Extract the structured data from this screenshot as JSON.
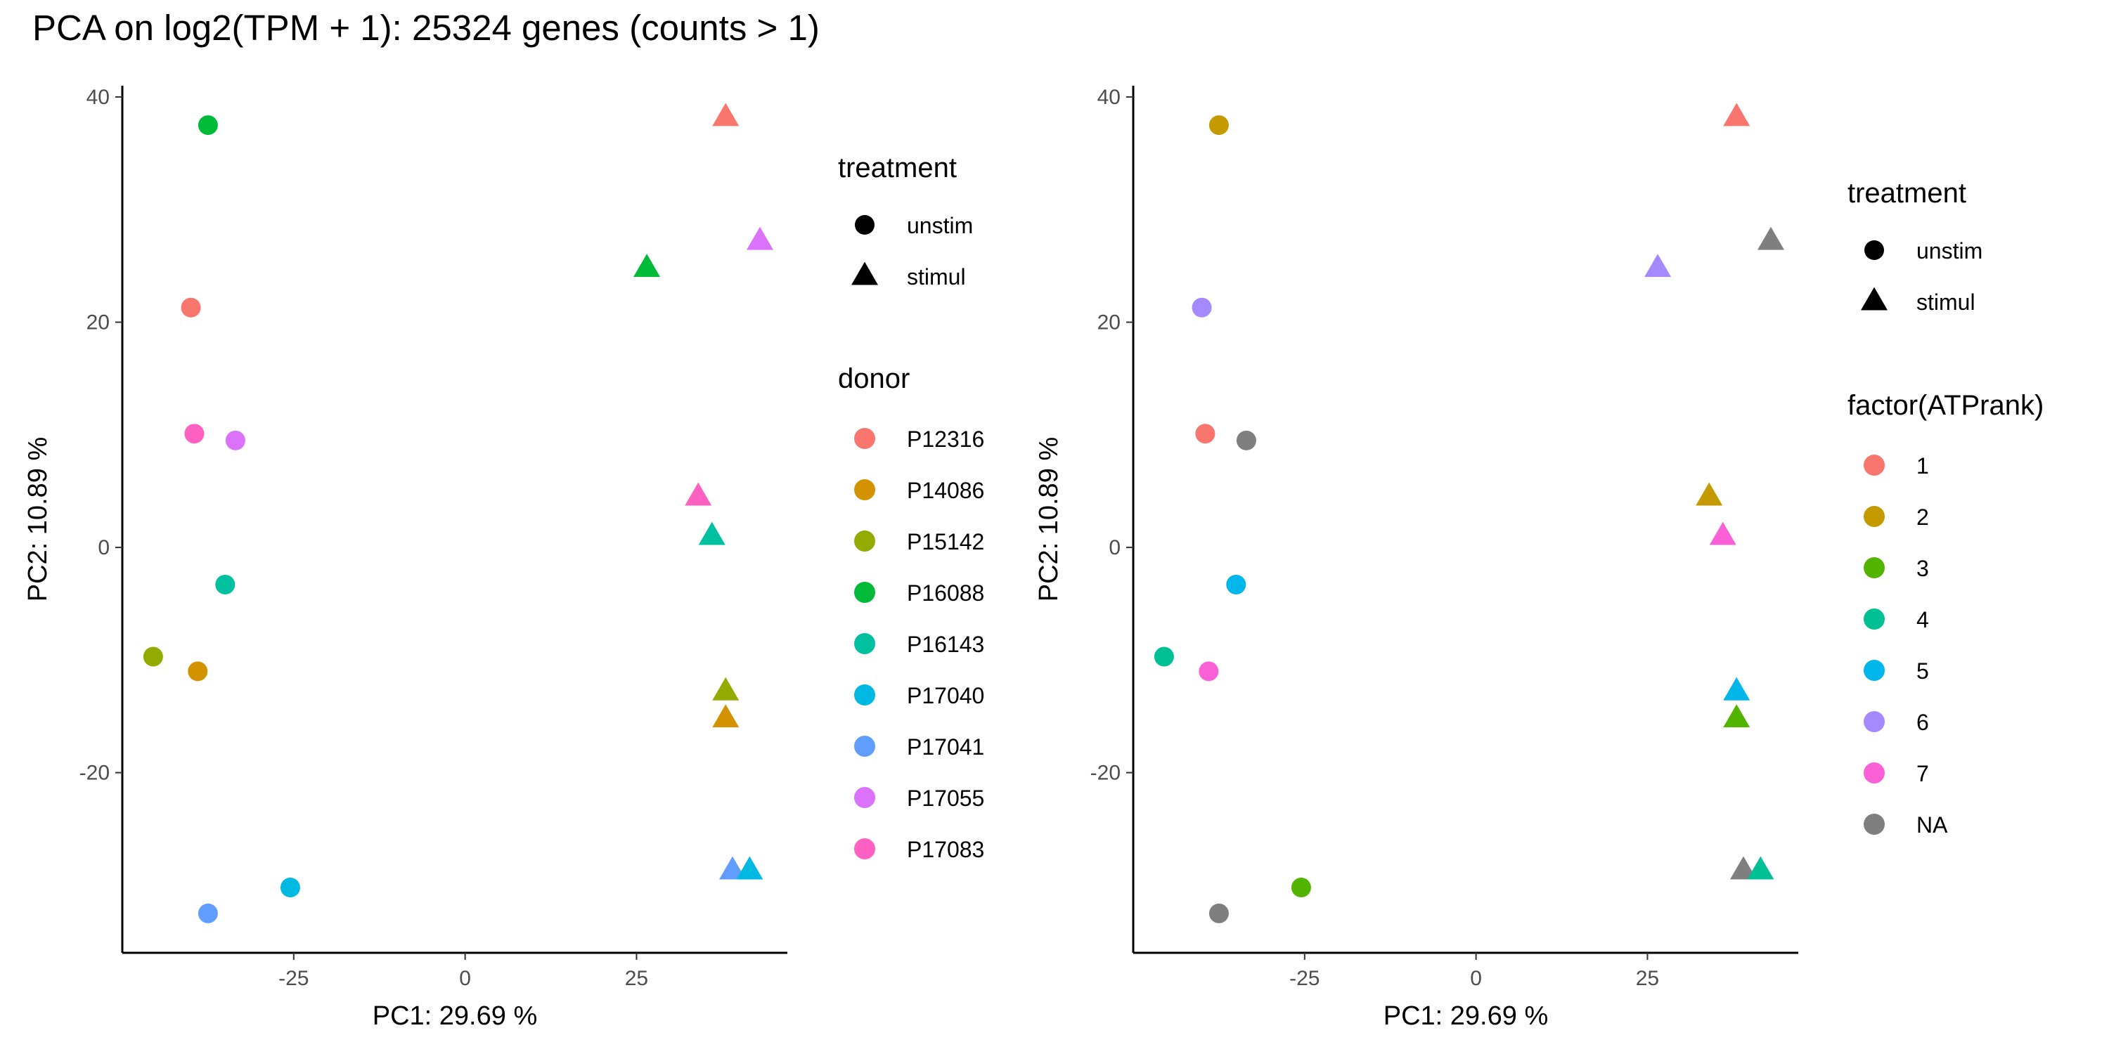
{
  "title": "PCA on log2(TPM + 1): 25324 genes (counts > 1)",
  "chart_data": [
    {
      "type": "scatter",
      "xlabel": "PC1:  29.69 %",
      "ylabel": "PC2:  10.89 %",
      "xlim": [
        -50,
        47
      ],
      "ylim": [
        -36,
        41
      ],
      "xticks": [
        -25,
        0,
        25
      ],
      "xtick_labels": [
        "-25",
        "0",
        "25"
      ],
      "yticks": [
        -20,
        0,
        20,
        40
      ],
      "ytick_labels": [
        "-20",
        "0",
        "20",
        "40"
      ],
      "grid": false,
      "legend_placement": "right",
      "shape_legend": {
        "title": "treatment",
        "items": [
          {
            "label": "unstim",
            "shape": "circle"
          },
          {
            "label": "stimul",
            "shape": "triangle"
          }
        ]
      },
      "color_legend": {
        "title": "donor",
        "items": [
          {
            "label": "P12316",
            "color": "#F8766D"
          },
          {
            "label": "P14086",
            "color": "#D39200"
          },
          {
            "label": "P15142",
            "color": "#93AA00"
          },
          {
            "label": "P16088",
            "color": "#00BA38"
          },
          {
            "label": "P16143",
            "color": "#00C19F"
          },
          {
            "label": "P17040",
            "color": "#00B9E3"
          },
          {
            "label": "P17041",
            "color": "#619CFF"
          },
          {
            "label": "P17055",
            "color": "#DB72FB"
          },
          {
            "label": "P17083",
            "color": "#FF61C3"
          }
        ]
      },
      "points": [
        {
          "x": -37.5,
          "y": 37.5,
          "shape": "circle",
          "color": "#00BA38"
        },
        {
          "x": -40,
          "y": 21.3,
          "shape": "circle",
          "color": "#F8766D"
        },
        {
          "x": -39.5,
          "y": 10.1,
          "shape": "circle",
          "color": "#FF61C3"
        },
        {
          "x": -33.5,
          "y": 9.5,
          "shape": "circle",
          "color": "#DB72FB"
        },
        {
          "x": -35,
          "y": -3.3,
          "shape": "circle",
          "color": "#00C19F"
        },
        {
          "x": -45.5,
          "y": -9.7,
          "shape": "circle",
          "color": "#93AA00"
        },
        {
          "x": -39,
          "y": -11,
          "shape": "circle",
          "color": "#D39200"
        },
        {
          "x": -25.5,
          "y": -30.2,
          "shape": "circle",
          "color": "#00B9E3"
        },
        {
          "x": -37.5,
          "y": -32.5,
          "shape": "circle",
          "color": "#619CFF"
        },
        {
          "x": 38,
          "y": 38.2,
          "shape": "triangle",
          "color": "#F8766D"
        },
        {
          "x": 43,
          "y": 27.2,
          "shape": "triangle",
          "color": "#DB72FB"
        },
        {
          "x": 26.5,
          "y": 24.8,
          "shape": "triangle",
          "color": "#00BA38"
        },
        {
          "x": 34,
          "y": 4.5,
          "shape": "triangle",
          "color": "#FF61C3"
        },
        {
          "x": 36,
          "y": 1,
          "shape": "triangle",
          "color": "#00C19F"
        },
        {
          "x": 38,
          "y": -12.8,
          "shape": "triangle",
          "color": "#93AA00"
        },
        {
          "x": 38,
          "y": -15.2,
          "shape": "triangle",
          "color": "#D39200"
        },
        {
          "x": 39,
          "y": -28.7,
          "shape": "triangle",
          "color": "#619CFF"
        },
        {
          "x": 41.5,
          "y": -28.7,
          "shape": "triangle",
          "color": "#00B9E3"
        }
      ]
    },
    {
      "type": "scatter",
      "xlabel": "PC1:  29.69 %",
      "ylabel": "PC2:  10.89 %",
      "xlim": [
        -50,
        47
      ],
      "ylim": [
        -36,
        41
      ],
      "xticks": [
        -25,
        0,
        25
      ],
      "xtick_labels": [
        "-25",
        "0",
        "25"
      ],
      "yticks": [
        -20,
        0,
        20,
        40
      ],
      "ytick_labels": [
        "-20",
        "0",
        "20",
        "40"
      ],
      "grid": false,
      "legend_placement": "right",
      "shape_legend": {
        "title": "treatment",
        "items": [
          {
            "label": "unstim",
            "shape": "circle"
          },
          {
            "label": "stimul",
            "shape": "triangle"
          }
        ]
      },
      "color_legend": {
        "title": "factor(ATPrank)",
        "items": [
          {
            "label": "1",
            "color": "#F8766D"
          },
          {
            "label": "2",
            "color": "#C49A00"
          },
          {
            "label": "3",
            "color": "#53B400"
          },
          {
            "label": "4",
            "color": "#00C094"
          },
          {
            "label": "5",
            "color": "#00B6EB"
          },
          {
            "label": "6",
            "color": "#A58AFF"
          },
          {
            "label": "7",
            "color": "#FB61D7"
          },
          {
            "label": "NA",
            "color": "#7F7F7F"
          }
        ]
      },
      "points": [
        {
          "x": -37.5,
          "y": 37.5,
          "shape": "circle",
          "color": "#C49A00"
        },
        {
          "x": -40,
          "y": 21.3,
          "shape": "circle",
          "color": "#A58AFF"
        },
        {
          "x": -39.5,
          "y": 10.1,
          "shape": "circle",
          "color": "#F8766D"
        },
        {
          "x": -33.5,
          "y": 9.5,
          "shape": "circle",
          "color": "#7F7F7F"
        },
        {
          "x": -35,
          "y": -3.3,
          "shape": "circle",
          "color": "#00B6EB"
        },
        {
          "x": -45.5,
          "y": -9.7,
          "shape": "circle",
          "color": "#00C094"
        },
        {
          "x": -39,
          "y": -11,
          "shape": "circle",
          "color": "#FB61D7"
        },
        {
          "x": -25.5,
          "y": -30.2,
          "shape": "circle",
          "color": "#53B400"
        },
        {
          "x": -37.5,
          "y": -32.5,
          "shape": "circle",
          "color": "#7F7F7F"
        },
        {
          "x": 38,
          "y": 38.2,
          "shape": "triangle",
          "color": "#F8766D"
        },
        {
          "x": 43,
          "y": 27.2,
          "shape": "triangle",
          "color": "#7F7F7F"
        },
        {
          "x": 26.5,
          "y": 24.8,
          "shape": "triangle",
          "color": "#A58AFF"
        },
        {
          "x": 34,
          "y": 4.5,
          "shape": "triangle",
          "color": "#C49A00"
        },
        {
          "x": 36,
          "y": 1,
          "shape": "triangle",
          "color": "#FB61D7"
        },
        {
          "x": 38,
          "y": -12.8,
          "shape": "triangle",
          "color": "#00B6EB"
        },
        {
          "x": 38,
          "y": -15.2,
          "shape": "triangle",
          "color": "#53B400"
        },
        {
          "x": 39,
          "y": -28.7,
          "shape": "triangle",
          "color": "#7F7F7F"
        },
        {
          "x": 41.5,
          "y": -28.7,
          "shape": "triangle",
          "color": "#00C094"
        }
      ]
    }
  ]
}
